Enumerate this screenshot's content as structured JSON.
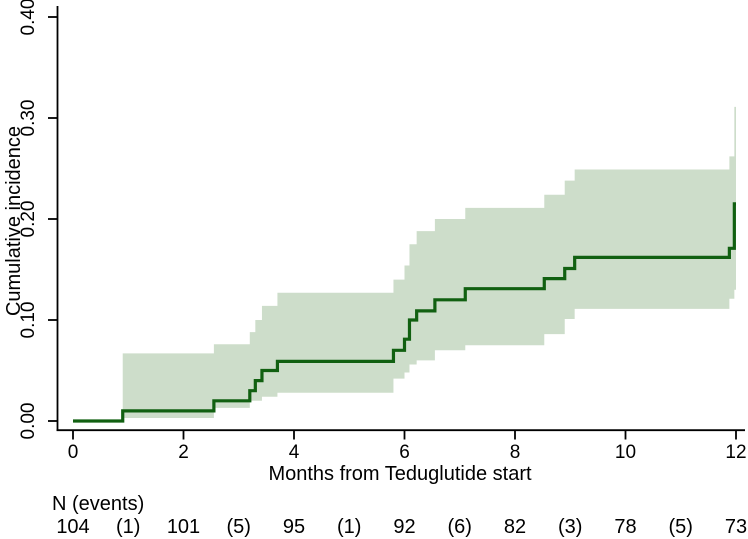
{
  "chart_data": {
    "type": "line",
    "variant": "cumulative-incidence-step-curve-with-confidence-band",
    "title": "",
    "xlabel": "Months from Teduglutide start",
    "ylabel": "Cumulative incidence",
    "xlim": [
      0,
      12
    ],
    "ylim": [
      0.0,
      0.4
    ],
    "xticks": [
      0,
      2,
      4,
      6,
      8,
      10,
      12
    ],
    "yticks": [
      {
        "value": 0.0,
        "label": "0.00"
      },
      {
        "value": 0.1,
        "label": "0.10"
      },
      {
        "value": 0.2,
        "label": "0.20"
      },
      {
        "value": 0.3,
        "label": "0.30"
      },
      {
        "value": 0.4,
        "label": "0.40"
      }
    ],
    "grid": false,
    "legend": "none",
    "colors": {
      "line": "#116011",
      "band": "#cdddca",
      "axis": "#000000",
      "text": "#000000"
    },
    "series": [
      {
        "name": "cumulative incidence",
        "draw": "step-after",
        "points": [
          [
            0.0,
            0.0
          ],
          [
            0.9,
            0.01
          ],
          [
            2.55,
            0.02
          ],
          [
            3.2,
            0.03
          ],
          [
            3.3,
            0.04
          ],
          [
            3.42,
            0.05
          ],
          [
            3.7,
            0.059
          ],
          [
            5.8,
            0.07
          ],
          [
            6.0,
            0.081
          ],
          [
            6.09,
            0.1
          ],
          [
            6.22,
            0.109
          ],
          [
            6.55,
            0.12
          ],
          [
            7.1,
            0.131
          ],
          [
            8.53,
            0.141
          ],
          [
            8.9,
            0.151
          ],
          [
            9.08,
            0.162
          ],
          [
            11.88,
            0.171
          ],
          [
            11.97,
            0.215
          ]
        ],
        "end_x": 12.0
      }
    ],
    "confidence_band": {
      "name": "confidence band",
      "points_t_lo_hi": [
        [
          0.9,
          0.003,
          0.067
        ],
        [
          2.55,
          0.013,
          0.076
        ],
        [
          3.2,
          0.02,
          0.088
        ],
        [
          3.3,
          0.02,
          0.1
        ],
        [
          3.42,
          0.024,
          0.114
        ],
        [
          3.7,
          0.028,
          0.127
        ],
        [
          5.8,
          0.042,
          0.14
        ],
        [
          6.0,
          0.048,
          0.154
        ],
        [
          6.09,
          0.056,
          0.175
        ],
        [
          6.22,
          0.06,
          0.188
        ],
        [
          6.55,
          0.07,
          0.2
        ],
        [
          7.1,
          0.075,
          0.211
        ],
        [
          8.53,
          0.086,
          0.224
        ],
        [
          8.9,
          0.101,
          0.238
        ],
        [
          9.08,
          0.111,
          0.249
        ],
        [
          11.88,
          0.121,
          0.262
        ],
        [
          11.97,
          0.13,
          0.311
        ]
      ],
      "end_x": 12.0
    },
    "risk_table": {
      "header": "N (events)",
      "entries": [
        {
          "x": 0,
          "label": "104"
        },
        {
          "x": 1,
          "label": "(1)"
        },
        {
          "x": 2,
          "label": "101"
        },
        {
          "x": 3,
          "label": "(5)"
        },
        {
          "x": 4,
          "label": "95"
        },
        {
          "x": 5,
          "label": "(1)"
        },
        {
          "x": 6,
          "label": "92"
        },
        {
          "x": 7,
          "label": "(6)"
        },
        {
          "x": 8,
          "label": "82"
        },
        {
          "x": 9,
          "label": "(3)"
        },
        {
          "x": 10,
          "label": "78"
        },
        {
          "x": 11,
          "label": "(5)"
        },
        {
          "x": 12,
          "label": "73"
        }
      ]
    }
  }
}
